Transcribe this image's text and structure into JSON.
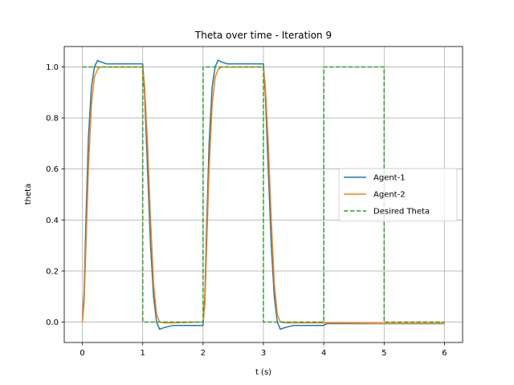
{
  "chart_data": {
    "type": "line",
    "title": "Theta over time - Iteration 9",
    "xlabel": "t (s)",
    "ylabel": "theta",
    "xlim": [
      -0.3,
      6.3
    ],
    "ylim": [
      -0.08,
      1.08
    ],
    "xticks": [
      0,
      1,
      2,
      3,
      4,
      5,
      6
    ],
    "yticks": [
      0.0,
      0.2,
      0.4,
      0.6,
      0.8,
      1.0
    ],
    "xtick_labels": [
      "0",
      "1",
      "2",
      "3",
      "4",
      "5",
      "6"
    ],
    "ytick_labels": [
      "0.0",
      "0.2",
      "0.4",
      "0.6",
      "0.8",
      "1.0"
    ],
    "grid": true,
    "legend_position": "center-right",
    "series": [
      {
        "name": "Agent-1",
        "color": "#1f77b4",
        "style": "solid",
        "x": [
          0,
          0.03,
          0.06,
          0.1,
          0.15,
          0.2,
          0.25,
          0.3,
          0.4,
          0.6,
          1.0,
          1.03,
          1.08,
          1.13,
          1.18,
          1.23,
          1.28,
          1.35,
          1.5,
          2.0,
          2.03,
          2.06,
          2.1,
          2.15,
          2.2,
          2.25,
          2.3,
          2.4,
          2.6,
          3.0,
          3.03,
          3.08,
          3.13,
          3.18,
          3.23,
          3.28,
          3.35,
          3.5,
          4.0,
          4.05,
          5.0,
          6.0
        ],
        "y": [
          0.0,
          0.12,
          0.4,
          0.72,
          0.92,
          1.0,
          1.025,
          1.02,
          1.012,
          1.012,
          1.012,
          0.9,
          0.6,
          0.3,
          0.1,
          0.0,
          -0.028,
          -0.022,
          -0.013,
          -0.013,
          0.1,
          0.38,
          0.7,
          0.92,
          1.0,
          1.027,
          1.02,
          1.012,
          1.012,
          1.012,
          0.9,
          0.6,
          0.3,
          0.1,
          0.0,
          -0.028,
          -0.022,
          -0.013,
          -0.013,
          -0.006,
          -0.006,
          -0.006
        ]
      },
      {
        "name": "Agent-2",
        "color": "#ff7f0e",
        "style": "solid",
        "x": [
          0,
          0.03,
          0.06,
          0.1,
          0.15,
          0.2,
          0.25,
          0.3,
          0.35,
          0.6,
          1.0,
          1.03,
          1.08,
          1.13,
          1.18,
          1.23,
          1.28,
          1.35,
          1.5,
          2.0,
          2.03,
          2.06,
          2.1,
          2.15,
          2.2,
          2.25,
          2.3,
          2.35,
          2.6,
          3.0,
          3.03,
          3.08,
          3.13,
          3.18,
          3.23,
          3.28,
          3.35,
          3.5,
          4.0,
          5.0,
          6.0
        ],
        "y": [
          0.0,
          0.08,
          0.3,
          0.6,
          0.85,
          0.96,
          0.99,
          1.0,
          1.0,
          1.0,
          1.0,
          0.93,
          0.7,
          0.4,
          0.15,
          0.03,
          0.0,
          -0.003,
          -0.003,
          0.0,
          0.07,
          0.3,
          0.6,
          0.85,
          0.96,
          0.99,
          1.0,
          1.0,
          1.0,
          1.0,
          0.93,
          0.7,
          0.4,
          0.15,
          0.03,
          0.0,
          -0.003,
          -0.003,
          -0.003,
          -0.005,
          -0.005
        ]
      },
      {
        "name": "Desired Theta",
        "color": "#2ca02c",
        "style": "dashed",
        "x": [
          0,
          1,
          1,
          2,
          2,
          3,
          3,
          4,
          4,
          5,
          5,
          6
        ],
        "y": [
          1,
          1,
          0,
          0,
          1,
          1,
          0,
          0,
          1,
          1,
          0,
          0
        ]
      }
    ]
  }
}
